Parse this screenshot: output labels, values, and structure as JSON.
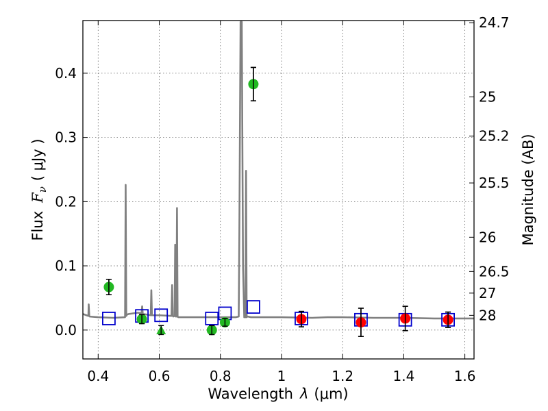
{
  "chart_data": {
    "type": "scatter",
    "title": "",
    "xlabel": "Wavelength",
    "xlabel_symbol": "λ",
    "xlabel_unit": "(μm)",
    "ylabel": "Flux",
    "ylabel_symbol": "F",
    "ylabel_subscript": "ν",
    "ylabel_unit": "( μJy )",
    "ylabel_right": "Magnitude (AB)",
    "xlim": [
      0.35,
      1.63
    ],
    "ylim": [
      -0.045,
      0.482
    ],
    "grid": true,
    "x_ticks": [
      0.4,
      0.6,
      0.8,
      1.0,
      1.2,
      1.4,
      1.6
    ],
    "x_tick_labels": [
      "0.4",
      "0.6",
      "0.8",
      "1",
      "1.2",
      "1.4",
      "1.6"
    ],
    "y_ticks": [
      0.0,
      0.1,
      0.2,
      0.3,
      0.4
    ],
    "y_tick_labels": [
      "0.0",
      "0.1",
      "0.2",
      "0.3",
      "0.4"
    ],
    "right_axis_ticks": [
      {
        "label": "24.7",
        "mag": 24.7
      },
      {
        "label": "25",
        "mag": 25.0
      },
      {
        "label": "25.2",
        "mag": 25.2
      },
      {
        "label": "25.5",
        "mag": 25.5
      },
      {
        "label": "26",
        "mag": 26.0
      },
      {
        "label": "26.5",
        "mag": 26.5
      },
      {
        "label": "27",
        "mag": 27.0
      },
      {
        "label": "28",
        "mag": 28.0
      }
    ],
    "colors": {
      "model": "#808080",
      "green": "#22b822",
      "red": "#ff0000",
      "blue": "#0000cc",
      "errorbar": "#000000"
    },
    "model_spectrum": {
      "name": "model SED",
      "x": [
        0.35,
        0.368,
        0.369,
        0.371,
        0.372,
        0.4,
        0.45,
        0.488,
        0.49,
        0.492,
        0.494,
        0.5,
        0.53,
        0.542,
        0.544,
        0.546,
        0.56,
        0.572,
        0.574,
        0.576,
        0.6,
        0.64,
        0.642,
        0.644,
        0.646,
        0.65,
        0.652,
        0.654,
        0.656,
        0.658,
        0.66,
        0.662,
        0.664,
        0.67,
        0.75,
        0.85,
        0.86,
        0.862,
        0.866,
        0.87,
        0.874,
        0.878,
        0.882,
        0.884,
        0.886,
        0.888,
        0.89,
        0.9,
        1.0,
        1.1,
        1.15,
        1.2,
        1.3,
        1.4,
        1.5,
        1.63
      ],
      "y": [
        0.025,
        0.022,
        0.04,
        0.022,
        0.021,
        0.02,
        0.019,
        0.02,
        0.226,
        0.022,
        0.024,
        0.025,
        0.027,
        0.026,
        0.037,
        0.025,
        0.024,
        0.023,
        0.062,
        0.023,
        0.023,
        0.022,
        0.07,
        0.022,
        0.021,
        0.022,
        0.133,
        0.021,
        0.021,
        0.19,
        0.021,
        0.02,
        0.02,
        0.02,
        0.02,
        0.02,
        0.021,
        0.15,
        0.48,
        0.48,
        0.1,
        0.02,
        0.02,
        0.248,
        0.02,
        0.021,
        0.021,
        0.02,
        0.02,
        0.019,
        0.02,
        0.02,
        0.019,
        0.019,
        0.018,
        0.018
      ]
    },
    "series": [
      {
        "name": "green points",
        "marker": "circle",
        "color": "#22b822",
        "points": [
          {
            "x": 0.435,
            "y": 0.067,
            "err": 0.012
          },
          {
            "x": 0.543,
            "y": 0.017,
            "err": 0.007
          },
          {
            "x": 0.772,
            "y": 0.0,
            "err": 0.007
          },
          {
            "x": 0.815,
            "y": 0.012,
            "err": 0.006
          },
          {
            "x": 0.908,
            "y": 0.383,
            "err": 0.026
          }
        ]
      },
      {
        "name": "green upper limit",
        "marker": "triangle",
        "color": "#22b822",
        "points": [
          {
            "x": 0.606,
            "y": 0.0,
            "err": 0.007
          }
        ]
      },
      {
        "name": "red points",
        "marker": "circle",
        "color": "#ff0000",
        "points": [
          {
            "x": 1.065,
            "y": 0.017,
            "err": 0.012
          },
          {
            "x": 1.26,
            "y": 0.012,
            "err": 0.022
          },
          {
            "x": 1.405,
            "y": 0.018,
            "err": 0.019
          },
          {
            "x": 1.545,
            "y": 0.016,
            "err": 0.012
          }
        ]
      },
      {
        "name": "model photometry",
        "marker": "open-square",
        "color": "#0000cc",
        "points": [
          {
            "x": 0.435,
            "y": 0.018
          },
          {
            "x": 0.543,
            "y": 0.022
          },
          {
            "x": 0.606,
            "y": 0.023
          },
          {
            "x": 0.772,
            "y": 0.018
          },
          {
            "x": 0.815,
            "y": 0.026
          },
          {
            "x": 0.908,
            "y": 0.036
          },
          {
            "x": 1.065,
            "y": 0.018
          },
          {
            "x": 1.26,
            "y": 0.016
          },
          {
            "x": 1.405,
            "y": 0.016
          },
          {
            "x": 1.545,
            "y": 0.016
          }
        ]
      }
    ]
  }
}
